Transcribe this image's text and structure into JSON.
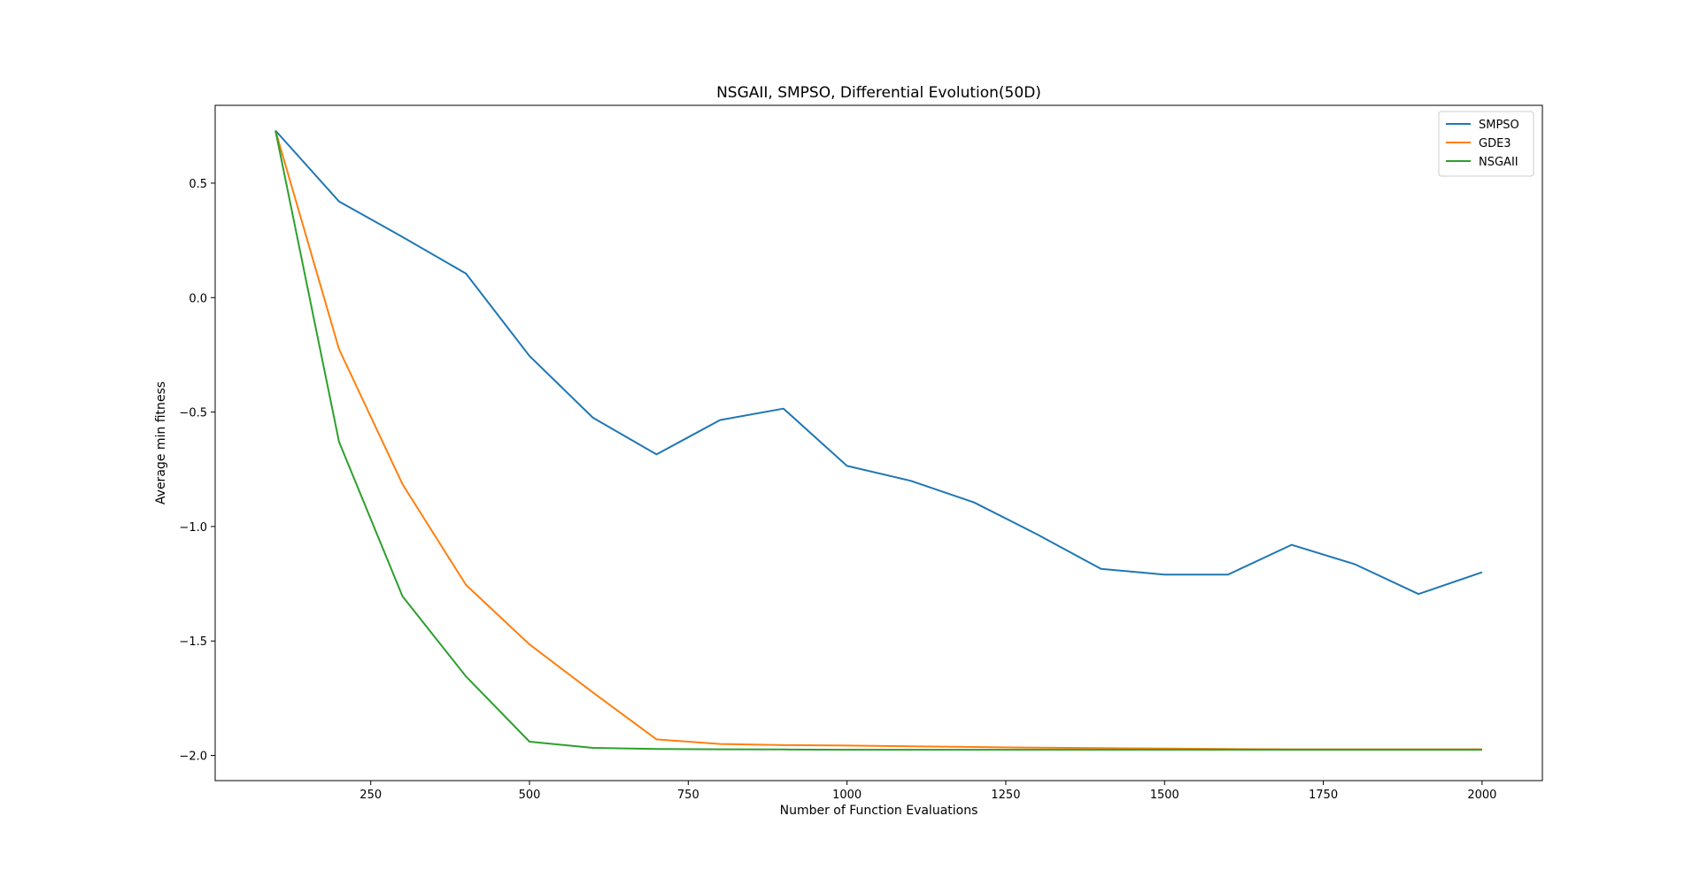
{
  "chart_data": {
    "type": "line",
    "title": "NSGAII, SMPSO, Differential Evolution(50D)",
    "xlabel": "Number of Function Evaluations",
    "ylabel": "Average min fitness",
    "xlim": [
      5,
      2095
    ],
    "ylim": [
      -2.11,
      0.84
    ],
    "xticks": [
      250,
      500,
      750,
      1000,
      1250,
      1500,
      1750,
      2000
    ],
    "xtick_labels": [
      "250",
      "500",
      "750",
      "1000",
      "1250",
      "1500",
      "1750",
      "2000"
    ],
    "yticks": [
      0.5,
      0.0,
      -0.5,
      -1.0,
      -1.5,
      -2.0
    ],
    "ytick_labels": [
      "0.5",
      "0.0",
      "−0.5",
      "−1.0",
      "−1.5",
      "−2.0"
    ],
    "grid": false,
    "legend": "top-right",
    "x": [
      100,
      200,
      300,
      400,
      500,
      600,
      700,
      800,
      900,
      1000,
      1100,
      1200,
      1300,
      1400,
      1500,
      1600,
      1700,
      1800,
      1900,
      2000
    ],
    "series": [
      {
        "name": "SMPSO",
        "color": "#1f77b4",
        "values": [
          0.73,
          0.42,
          0.265,
          0.105,
          -0.255,
          -0.525,
          -0.685,
          -0.535,
          -0.485,
          -0.735,
          -0.8,
          -0.895,
          -1.035,
          -1.185,
          -1.21,
          -1.21,
          -1.08,
          -1.165,
          -1.295,
          -1.2
        ]
      },
      {
        "name": "GDE3",
        "color": "#ff7f0e",
        "values": [
          0.73,
          -0.225,
          -0.815,
          -1.255,
          -1.515,
          -1.725,
          -1.93,
          -1.95,
          -1.955,
          -1.957,
          -1.96,
          -1.963,
          -1.966,
          -1.968,
          -1.97,
          -1.972,
          -1.973,
          -1.973,
          -1.973,
          -1.973
        ]
      },
      {
        "name": "NSGAII",
        "color": "#2ca02c",
        "values": [
          0.73,
          -0.63,
          -1.305,
          -1.655,
          -1.94,
          -1.967,
          -1.972,
          -1.973,
          -1.974,
          -1.975,
          -1.975,
          -1.975,
          -1.975,
          -1.975,
          -1.975,
          -1.975,
          -1.975,
          -1.975,
          -1.975,
          -1.975
        ]
      }
    ]
  }
}
